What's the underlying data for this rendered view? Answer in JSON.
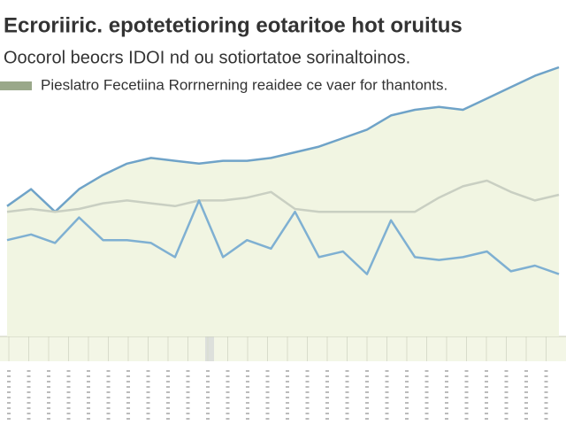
{
  "chart_data": {
    "type": "line",
    "title": "Ecroriiric. epotetetioring eotaritoe hot oruitus",
    "subtitle": "Oocorol beocrs IDOI nd ou sotiortatoe sorinaltoinos.",
    "legend_label": "Pieslatro Fecetiina Rorrnerning reaidee ce vaer for thantonts.",
    "legend_color": "#9aa88a",
    "area_color": "#f1f5e2",
    "categories": [
      null,
      null,
      null,
      null,
      null,
      null,
      null,
      null,
      null,
      null,
      null,
      null,
      null,
      null,
      null,
      null,
      null,
      null,
      null,
      null,
      null,
      null,
      null,
      null
    ],
    "ylim": [
      0,
      100
    ],
    "series": [
      {
        "color": "#6fa3c8",
        "values": [
          46,
          52,
          44,
          52,
          57,
          61,
          63,
          62,
          61,
          62,
          62,
          63,
          65,
          67,
          70,
          73,
          78,
          80,
          81,
          80,
          84,
          88,
          92,
          95
        ]
      },
      {
        "color": "#c9cfc2",
        "values": [
          44,
          45,
          44,
          45,
          47,
          48,
          47,
          46,
          48,
          48,
          49,
          51,
          45,
          44,
          44,
          44,
          44,
          44,
          49,
          53,
          55,
          51,
          48,
          50
        ]
      },
      {
        "color": "#7fb0d2",
        "values": [
          34,
          36,
          33,
          42,
          34,
          34,
          33,
          28,
          48,
          28,
          34,
          31,
          44,
          28,
          30,
          22,
          41,
          28,
          27,
          28,
          30,
          23,
          25,
          22
        ]
      }
    ]
  }
}
